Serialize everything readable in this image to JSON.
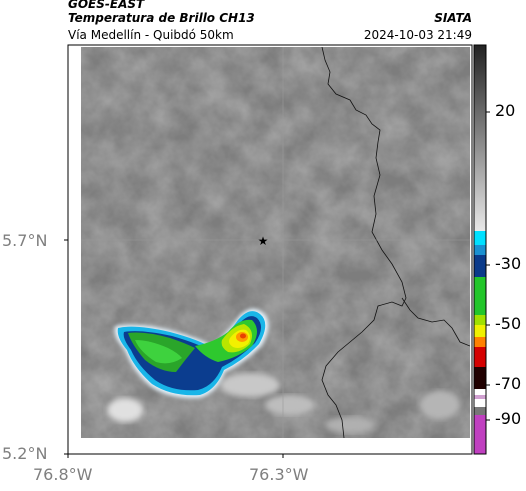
{
  "header": {
    "satellite": "GOES-EAST",
    "product": "Temperatura de Brillo CH13",
    "region": "Vía Medellín - Quibdó 50km",
    "source": "SIATA",
    "datetime": "2024-10-03 21:49"
  },
  "map": {
    "lat_ticks": [
      "5.7°N",
      "5.2°N"
    ],
    "lon_ticks": [
      "76.8°W",
      "76.3°W"
    ],
    "marker": "★"
  },
  "colorbar": {
    "ticks": [
      "20",
      "-30",
      "-50",
      "-70",
      "-90"
    ],
    "colors": {
      "gray_top": "#2a2a2a",
      "gray_bottom": "#e6e6e6",
      "cyan": "#00e0ff",
      "blue": "#0a3a8a",
      "green": "#22c62a",
      "yellow": "#f0f000",
      "orange": "#ff8000",
      "red": "#d40000",
      "dark": "#200000",
      "magenta": "#c040c0"
    }
  }
}
